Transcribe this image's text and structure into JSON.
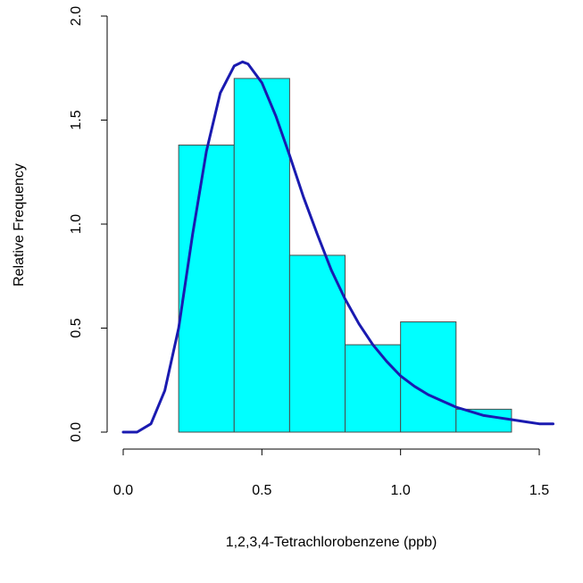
{
  "chart_data": {
    "type": "bar",
    "xlabel": "1,2,3,4-Tetrachlorobenzene (ppb)",
    "ylabel": "Relative Frequency",
    "xlim": [
      0.0,
      1.55
    ],
    "ylim": [
      0.0,
      2.0
    ],
    "x_ticks": [
      0.0,
      0.5,
      1.0,
      1.5
    ],
    "x_tick_labels": [
      "0.0",
      "0.5",
      "1.0",
      "1.5"
    ],
    "y_ticks": [
      0.0,
      0.5,
      1.0,
      1.5,
      2.0
    ],
    "y_tick_labels": [
      "0.0",
      "0.5",
      "1.0",
      "1.5",
      "2.0"
    ],
    "bins": [
      {
        "from": 0.2,
        "to": 0.4,
        "value": 1.38
      },
      {
        "from": 0.4,
        "to": 0.6,
        "value": 1.7
      },
      {
        "from": 0.6,
        "to": 0.8,
        "value": 0.85
      },
      {
        "from": 0.8,
        "to": 1.0,
        "value": 0.42
      },
      {
        "from": 1.0,
        "to": 1.2,
        "value": 0.53
      },
      {
        "from": 1.2,
        "to": 1.4,
        "value": 0.11
      }
    ],
    "fitted_curve": {
      "x": [
        0.0,
        0.05,
        0.1,
        0.15,
        0.2,
        0.25,
        0.3,
        0.35,
        0.4,
        0.43,
        0.45,
        0.5,
        0.55,
        0.6,
        0.65,
        0.7,
        0.75,
        0.8,
        0.85,
        0.9,
        0.95,
        1.0,
        1.05,
        1.1,
        1.15,
        1.2,
        1.25,
        1.3,
        1.35,
        1.4,
        1.45,
        1.5,
        1.55
      ],
      "y": [
        0.0,
        0.0,
        0.04,
        0.2,
        0.5,
        0.95,
        1.35,
        1.63,
        1.76,
        1.78,
        1.77,
        1.68,
        1.52,
        1.33,
        1.13,
        0.95,
        0.78,
        0.64,
        0.52,
        0.42,
        0.34,
        0.27,
        0.22,
        0.18,
        0.15,
        0.12,
        0.1,
        0.08,
        0.07,
        0.06,
        0.05,
        0.04,
        0.04
      ]
    },
    "colors": {
      "bar_fill": "#00ffff",
      "curve": "#1a1ab0"
    },
    "grid": false,
    "legend": "none"
  }
}
